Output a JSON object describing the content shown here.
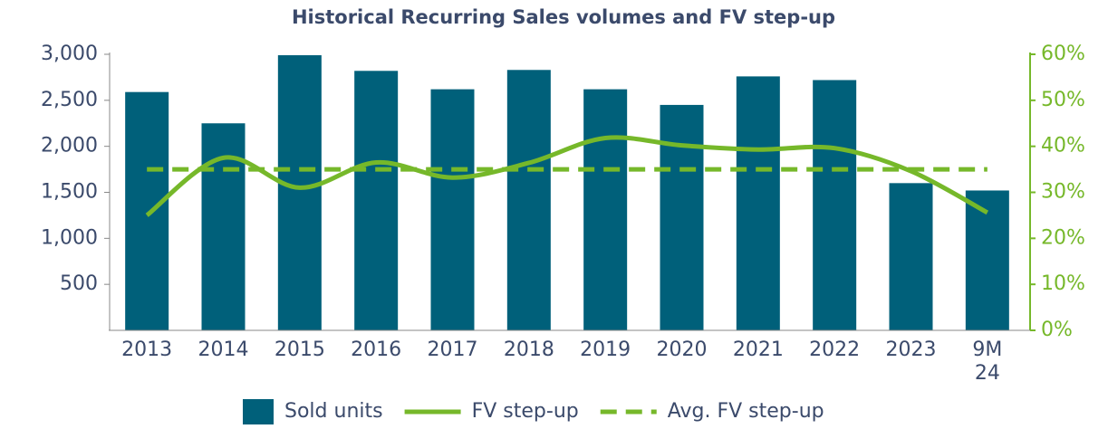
{
  "chart_data": {
    "type": "bar",
    "title": "Historical Recurring Sales volumes and FV step-up",
    "categories": [
      "2013",
      "2014",
      "2015",
      "2016",
      "2017",
      "2018",
      "2019",
      "2020",
      "2021",
      "2022",
      "2023",
      "9M 24"
    ],
    "series": [
      {
        "name": "Sold units",
        "type": "bar",
        "color": "#00607a",
        "values": [
          2590,
          2250,
          2990,
          2820,
          2620,
          2830,
          2620,
          2450,
          2760,
          2720,
          1600,
          1520
        ]
      },
      {
        "name": "FV step-up",
        "type": "line",
        "axis": "y2",
        "color": "#76b82a",
        "values": [
          25.0,
          37.5,
          31.0,
          36.5,
          33.2,
          36.4,
          41.8,
          40.2,
          39.3,
          39.6,
          34.6,
          25.6
        ]
      },
      {
        "name": "Avg. FV step-up",
        "type": "line",
        "dashed": true,
        "axis": "y2",
        "color": "#76b82a",
        "values": [
          35,
          35,
          35,
          35,
          35,
          35,
          35,
          35,
          35,
          35,
          35,
          35
        ]
      }
    ],
    "ylim": [
      0,
      3000
    ],
    "yticks": [
      500,
      {
        "value": 1000,
        "label": "1,000"
      },
      {
        "value": 1500,
        "label": "1,500"
      },
      {
        "value": 2000,
        "label": "2,000"
      },
      {
        "value": 2500,
        "label": "2,500"
      },
      {
        "value": 3000,
        "label": "3,000"
      }
    ],
    "y2lim": [
      0,
      60
    ],
    "y2ticks": [
      {
        "value": 0,
        "label": "0%"
      },
      {
        "value": 10,
        "label": "10%"
      },
      {
        "value": 20,
        "label": "20%"
      },
      {
        "value": 30,
        "label": "30%"
      },
      {
        "value": 40,
        "label": "40%"
      },
      {
        "value": 50,
        "label": "50%"
      },
      {
        "value": 60,
        "label": "60%"
      }
    ],
    "legend": "bottom"
  }
}
